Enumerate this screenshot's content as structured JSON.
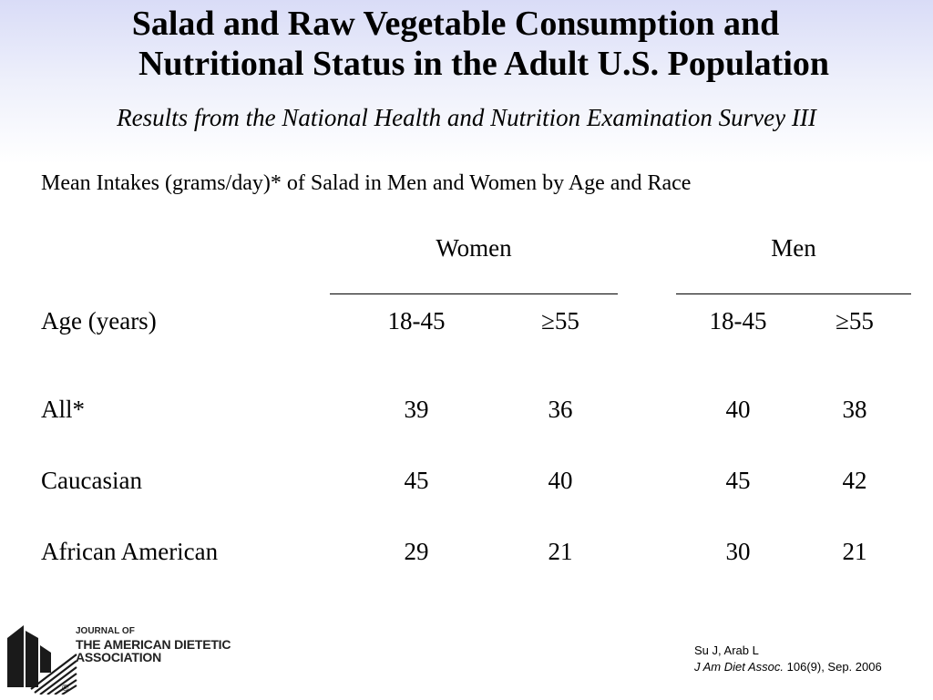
{
  "title": {
    "line1": "Salad and Raw Vegetable Consumption and",
    "line2": "Nutritional Status in the Adult U.S. Population"
  },
  "subtitle": "Results from the National Health and Nutrition Examination Survey III",
  "table": {
    "caption": "Mean Intakes (grams/day)* of Salad in Men and Women by Age and Race",
    "groups": {
      "women": "Women",
      "men": "Men"
    },
    "header": {
      "label": "Age (years)",
      "cols": [
        "18-45",
        "≥55",
        "18-45",
        "≥55"
      ]
    },
    "rows": [
      {
        "label": "All*",
        "values": [
          "39",
          "36",
          "40",
          "38"
        ]
      },
      {
        "label": "Caucasian",
        "values": [
          "45",
          "40",
          "45",
          "42"
        ]
      },
      {
        "label": "African American",
        "values": [
          "29",
          "21",
          "30",
          "21"
        ]
      }
    ]
  },
  "reference": {
    "authors": "Su J, Arab L",
    "journal": "J Am Diet Assoc.",
    "citation": " 106(9), Sep. 2006"
  },
  "logo": {
    "icon": "jada-logo-icon",
    "line1": "JOURNAL OF",
    "line2": "THE AMERICAN DIETETIC",
    "line3": "ASSOCIATION",
    "mark": "®"
  }
}
